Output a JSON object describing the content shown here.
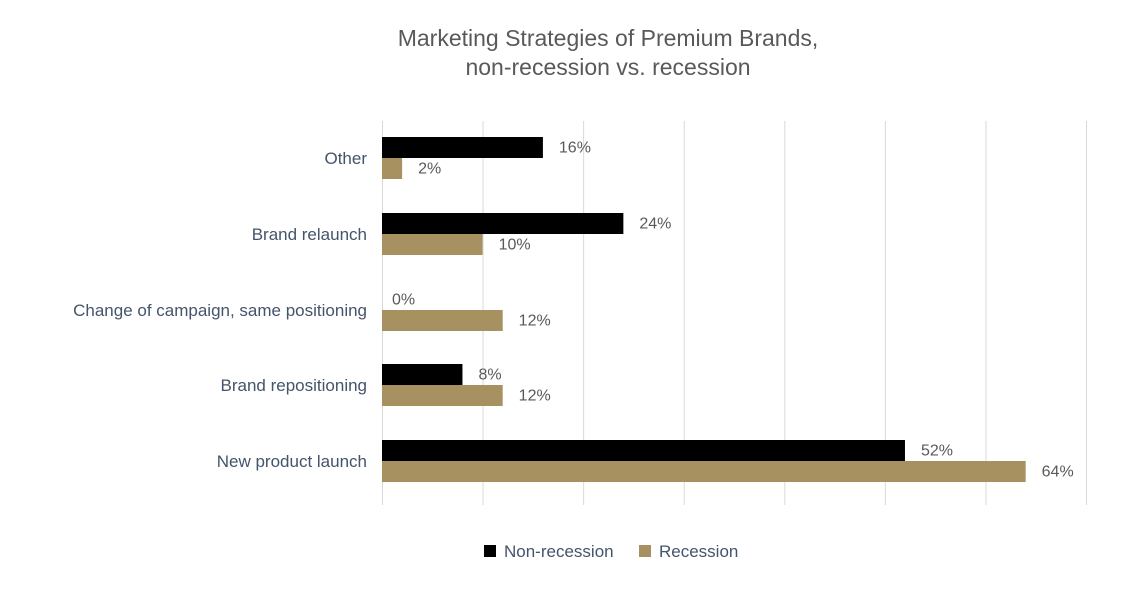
{
  "chart_data": {
    "type": "bar",
    "orientation": "horizontal",
    "title": [
      "Marketing Strategies of Premium Brands,",
      "non-recession vs. recession"
    ],
    "categories": [
      "Other",
      "Brand relaunch",
      "Change of campaign, same positioning",
      "Brand repositioning",
      "New product launch"
    ],
    "series": [
      {
        "name": "Non-recession",
        "color": "#000000",
        "values": [
          16,
          24,
          0,
          8,
          52
        ],
        "labels": [
          "16%",
          "24%",
          "0%",
          "8%",
          "52%"
        ]
      },
      {
        "name": "Recession",
        "color": "#a89160",
        "values": [
          2,
          10,
          12,
          12,
          64
        ],
        "labels": [
          "2%",
          "10%",
          "12%",
          "12%",
          "64%"
        ]
      }
    ],
    "xlim": [
      0,
      70
    ],
    "x_gridlines": [
      0,
      10,
      20,
      30,
      40,
      50,
      60,
      70
    ],
    "grid": true,
    "legend": "bottom-center",
    "axis_color": "#d9d9d9"
  }
}
